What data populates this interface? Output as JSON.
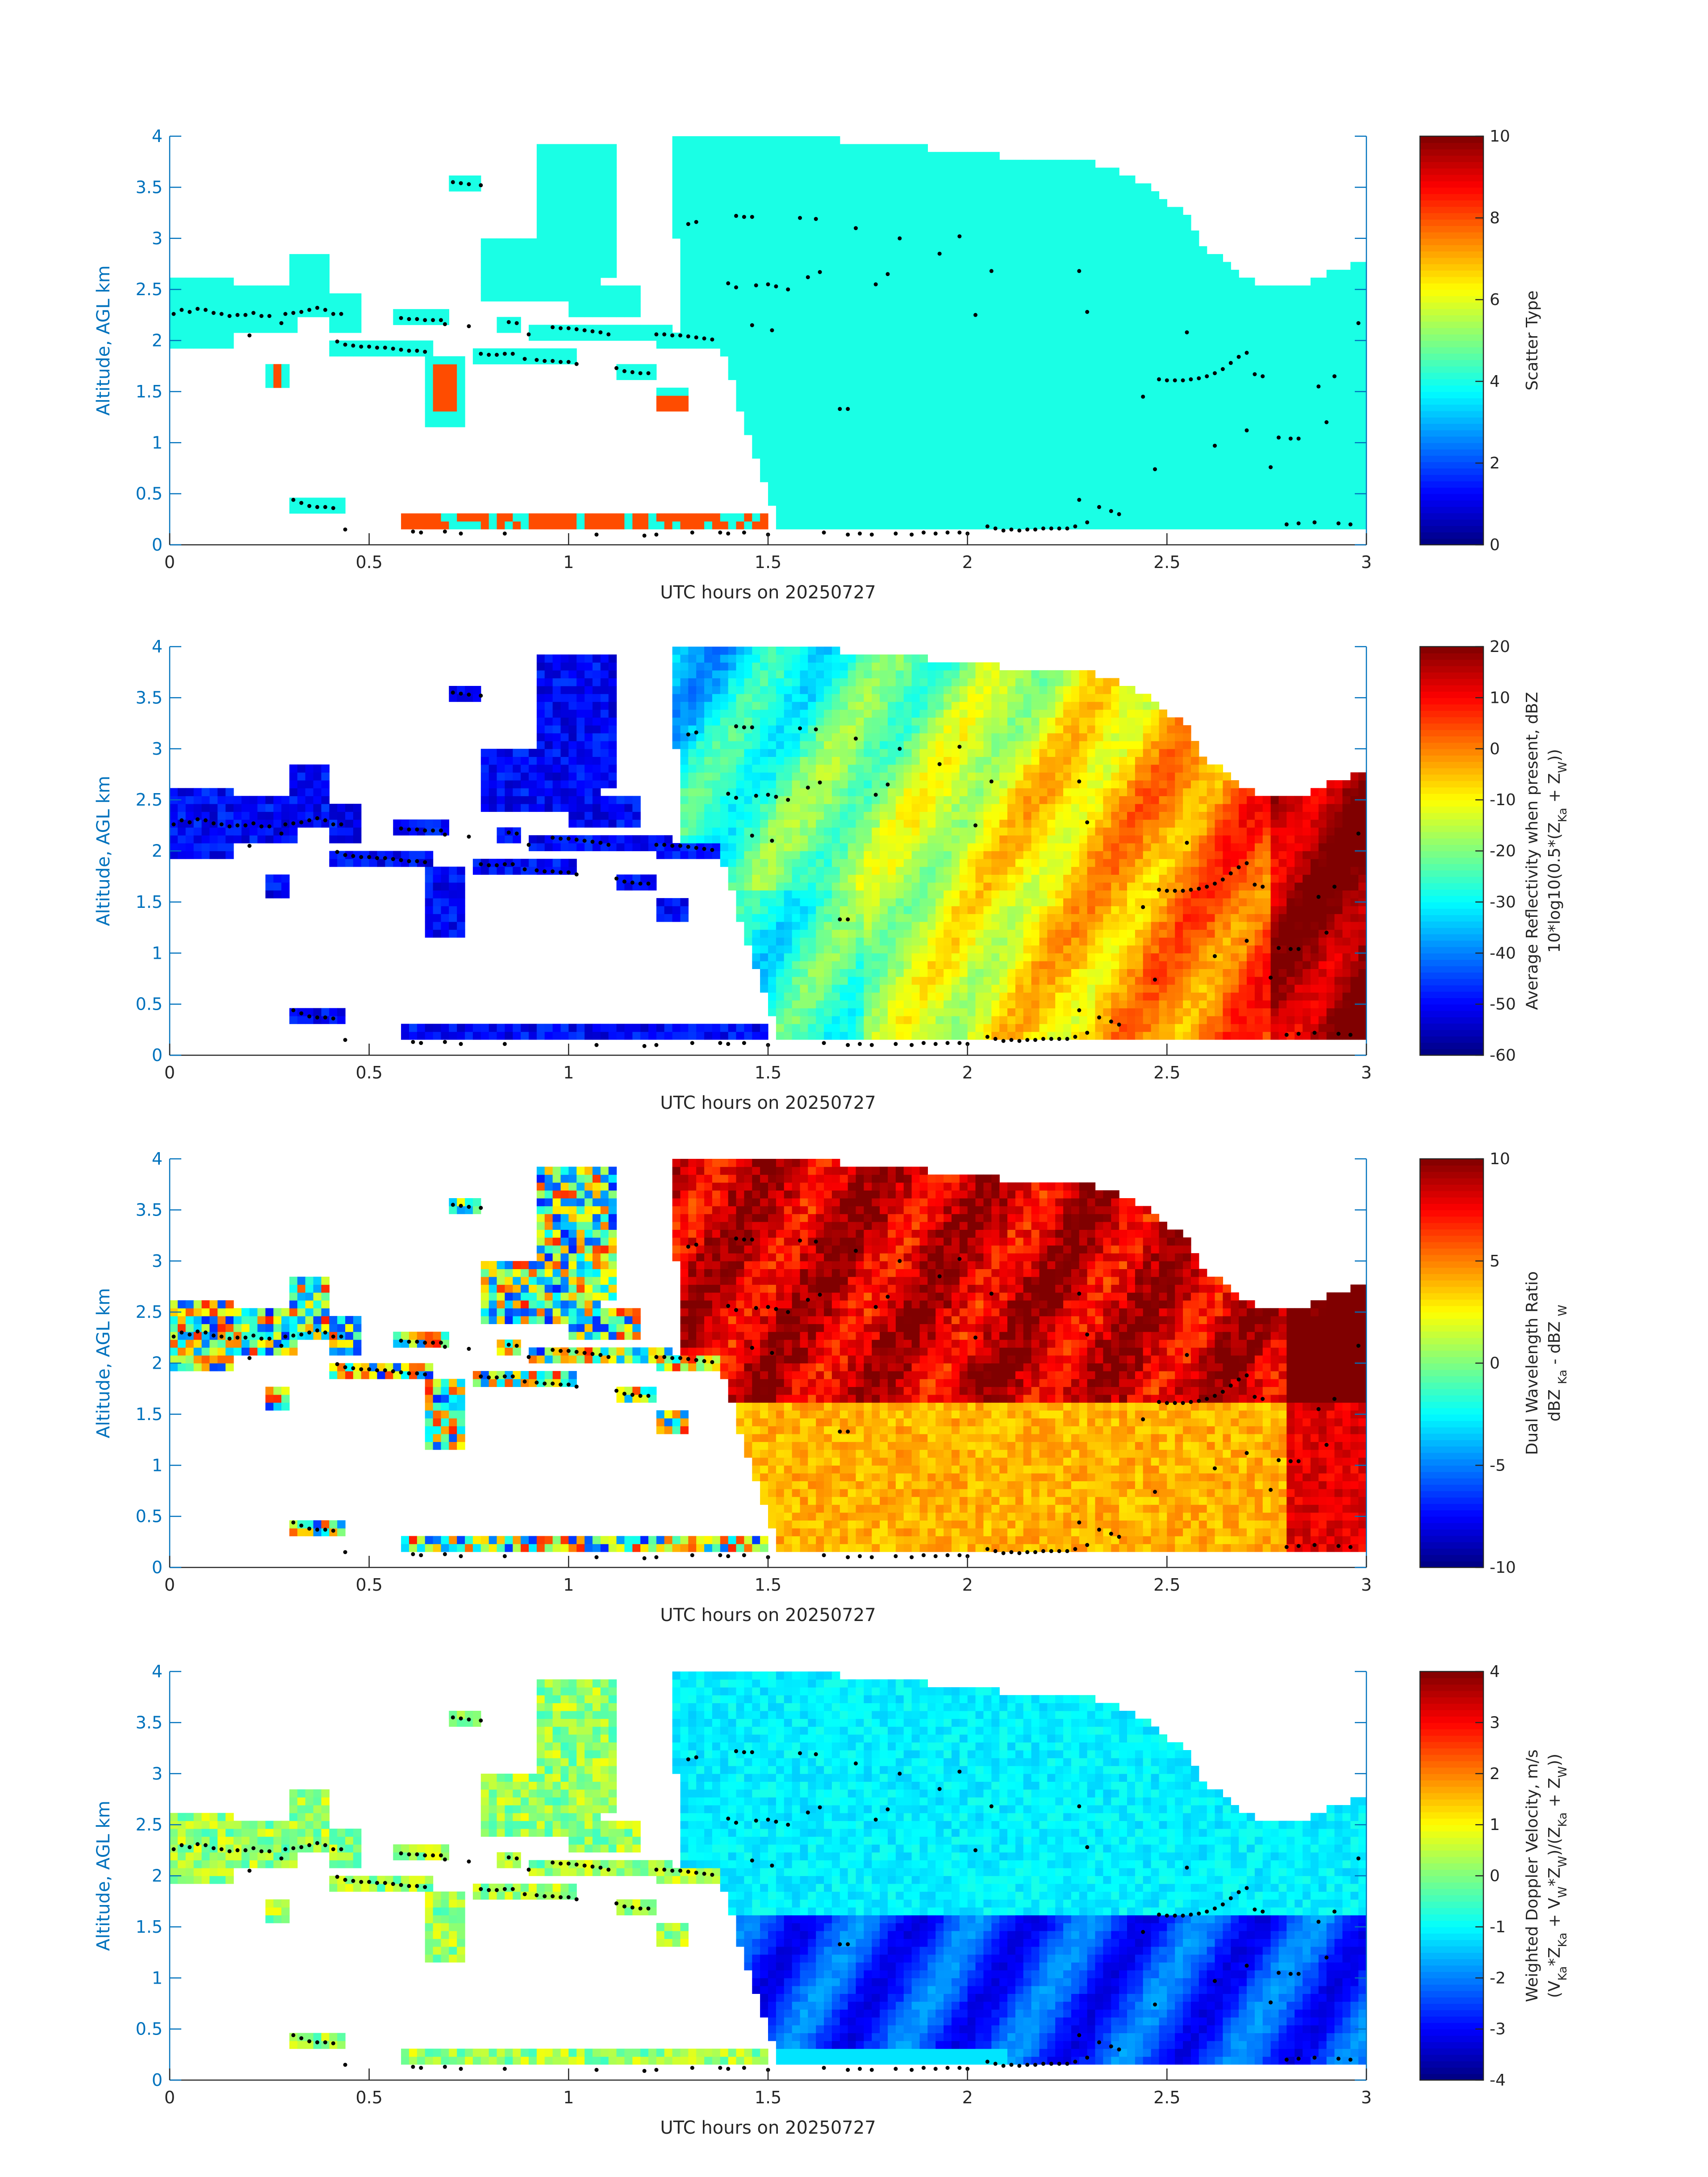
{
  "figure": {
    "background": "#ffffff",
    "frame_color": "#0072BD",
    "dot_color": "#000000"
  },
  "chart_data": [
    {
      "type": "heatmap",
      "id": "scatter-type",
      "xlabel": "UTC hours on 20250727",
      "ylabel": "Altitude, AGL km",
      "xlim": [
        0,
        3
      ],
      "ylim": [
        0,
        4
      ],
      "xticks": [
        "0",
        "0.5",
        "1",
        "1.5",
        "2",
        "2.5",
        "3"
      ],
      "yticks": [
        "0",
        "0.5",
        "1",
        "1.5",
        "2",
        "2.5",
        "3",
        "3.5",
        "4"
      ],
      "colorbar": {
        "label": "Scatter Type",
        "label_sub": "",
        "ticks": [
          "0",
          "2",
          "4",
          "6",
          "8",
          "10"
        ],
        "range": [
          0,
          10
        ]
      },
      "field": "scatter"
    },
    {
      "type": "heatmap",
      "id": "reflectivity",
      "xlabel": "UTC hours on 20250727",
      "ylabel": "Altitude, AGL km",
      "xlim": [
        0,
        3
      ],
      "ylim": [
        0,
        4
      ],
      "xticks": [
        "0",
        "0.5",
        "1",
        "1.5",
        "2",
        "2.5",
        "3"
      ],
      "yticks": [
        "0",
        "0.5",
        "1",
        "1.5",
        "2",
        "2.5",
        "3",
        "3.5",
        "4"
      ],
      "colorbar": {
        "label": "Average Reflectivity when present, dBZ",
        "label_sub": "10*log10(0.5*(Z",
        "label_parts": [
          "10*log10(0.5*(Z",
          "Ka",
          " + Z",
          "W",
          "))"
        ],
        "ticks": [
          "-60",
          "-50",
          "-40",
          "-30",
          "-20",
          "-10",
          "0",
          "10",
          "20"
        ],
        "range": [
          -60,
          20
        ]
      },
      "field": "reflectivity"
    },
    {
      "type": "heatmap",
      "id": "dual-wavelength-ratio",
      "xlabel": "UTC hours on 20250727",
      "ylabel": "Altitude, AGL km",
      "xlim": [
        0,
        3
      ],
      "ylim": [
        0,
        4
      ],
      "xticks": [
        "0",
        "0.5",
        "1",
        "1.5",
        "2",
        "2.5",
        "3"
      ],
      "yticks": [
        "0",
        "0.5",
        "1",
        "1.5",
        "2",
        "2.5",
        "3",
        "3.5",
        "4"
      ],
      "colorbar": {
        "label": "Dual Wavelength Ratio",
        "label_sub": "dBZ",
        "label_parts": [
          "dBZ ",
          "Ka",
          " - dBZ ",
          "W",
          ""
        ],
        "ticks": [
          "-10",
          "-5",
          "0",
          "5",
          "10"
        ],
        "range": [
          -10,
          10
        ]
      },
      "field": "dwr"
    },
    {
      "type": "heatmap",
      "id": "doppler-velocity",
      "xlabel": "UTC hours on 20250727",
      "ylabel": "Altitude, AGL km",
      "xlim": [
        0,
        3
      ],
      "ylim": [
        0,
        4
      ],
      "xticks": [
        "0",
        "0.5",
        "1",
        "1.5",
        "2",
        "2.5",
        "3"
      ],
      "yticks": [
        "0",
        "0.5",
        "1",
        "1.5",
        "2",
        "2.5",
        "3",
        "3.5",
        "4"
      ],
      "colorbar": {
        "label": "Weighted Doppler Velocity, m/s",
        "label_sub": "(V",
        "label_parts": [
          "(V",
          "Ka",
          "*Z",
          "Ka",
          " + V",
          "W",
          "*Z",
          "W",
          ")/(Z",
          "Ka",
          " + Z",
          "W",
          "))"
        ],
        "ticks": [
          "-4",
          "-3",
          "-2",
          "-1",
          "0",
          "1",
          "2",
          "3",
          "4"
        ],
        "range": [
          -4,
          4
        ]
      },
      "field": "velocity"
    }
  ],
  "dots": [
    [
      0.01,
      2.26
    ],
    [
      0.03,
      2.3
    ],
    [
      0.05,
      2.28
    ],
    [
      0.07,
      2.31
    ],
    [
      0.09,
      2.3
    ],
    [
      0.11,
      2.27
    ],
    [
      0.13,
      2.26
    ],
    [
      0.15,
      2.24
    ],
    [
      0.17,
      2.25
    ],
    [
      0.19,
      2.25
    ],
    [
      0.21,
      2.27
    ],
    [
      0.23,
      2.24
    ],
    [
      0.25,
      2.24
    ],
    [
      0.28,
      2.17
    ],
    [
      0.29,
      2.26
    ],
    [
      0.31,
      2.27
    ],
    [
      0.33,
      2.28
    ],
    [
      0.35,
      2.3
    ],
    [
      0.37,
      2.32
    ],
    [
      0.39,
      2.3
    ],
    [
      0.41,
      2.26
    ],
    [
      0.43,
      2.26
    ],
    [
      0.2,
      2.05
    ],
    [
      0.42,
      1.99
    ],
    [
      0.44,
      1.96
    ],
    [
      0.46,
      1.95
    ],
    [
      0.48,
      1.94
    ],
    [
      0.5,
      1.94
    ],
    [
      0.52,
      1.93
    ],
    [
      0.54,
      1.93
    ],
    [
      0.56,
      1.92
    ],
    [
      0.58,
      1.91
    ],
    [
      0.6,
      1.9
    ],
    [
      0.62,
      1.9
    ],
    [
      0.64,
      1.89
    ],
    [
      0.58,
      2.22
    ],
    [
      0.6,
      2.21
    ],
    [
      0.62,
      2.21
    ],
    [
      0.64,
      2.2
    ],
    [
      0.66,
      2.2
    ],
    [
      0.68,
      2.2
    ],
    [
      0.69,
      2.16
    ],
    [
      0.75,
      2.14
    ],
    [
      0.71,
      3.55
    ],
    [
      0.73,
      3.54
    ],
    [
      0.75,
      3.53
    ],
    [
      0.78,
      3.52
    ],
    [
      0.78,
      1.87
    ],
    [
      0.8,
      1.86
    ],
    [
      0.82,
      1.86
    ],
    [
      0.84,
      1.87
    ],
    [
      0.86,
      1.87
    ],
    [
      0.85,
      2.18
    ],
    [
      0.87,
      2.17
    ],
    [
      0.89,
      1.82
    ],
    [
      0.9,
      2.06
    ],
    [
      0.92,
      1.81
    ],
    [
      0.94,
      1.8
    ],
    [
      0.96,
      1.8
    ],
    [
      0.98,
      1.79
    ],
    [
      1.0,
      1.79
    ],
    [
      1.02,
      1.77
    ],
    [
      0.96,
      2.13
    ],
    [
      0.98,
      2.12
    ],
    [
      1.0,
      2.12
    ],
    [
      1.02,
      2.11
    ],
    [
      1.04,
      2.1
    ],
    [
      1.06,
      2.09
    ],
    [
      1.08,
      2.08
    ],
    [
      1.1,
      2.06
    ],
    [
      1.12,
      1.73
    ],
    [
      1.14,
      1.7
    ],
    [
      1.16,
      1.69
    ],
    [
      1.18,
      1.68
    ],
    [
      1.2,
      1.68
    ],
    [
      1.22,
      2.06
    ],
    [
      1.24,
      2.06
    ],
    [
      1.26,
      2.05
    ],
    [
      1.28,
      2.05
    ],
    [
      1.3,
      2.04
    ],
    [
      1.32,
      2.03
    ],
    [
      1.34,
      2.02
    ],
    [
      1.36,
      2.01
    ],
    [
      1.3,
      3.14
    ],
    [
      1.32,
      3.16
    ],
    [
      1.42,
      3.22
    ],
    [
      1.44,
      3.21
    ],
    [
      1.46,
      3.21
    ],
    [
      1.58,
      3.2
    ],
    [
      1.62,
      3.19
    ],
    [
      1.4,
      2.56
    ],
    [
      1.42,
      2.52
    ],
    [
      1.47,
      2.54
    ],
    [
      1.5,
      2.55
    ],
    [
      1.52,
      2.53
    ],
    [
      1.55,
      2.5
    ],
    [
      1.6,
      2.62
    ],
    [
      1.63,
      2.67
    ],
    [
      1.72,
      3.1
    ],
    [
      1.77,
      2.55
    ],
    [
      1.8,
      2.65
    ],
    [
      1.83,
      3.0
    ],
    [
      1.93,
      2.85
    ],
    [
      1.98,
      3.02
    ],
    [
      2.02,
      2.25
    ],
    [
      2.06,
      2.68
    ],
    [
      2.28,
      2.68
    ],
    [
      2.3,
      2.28
    ],
    [
      2.55,
      2.08
    ],
    [
      1.46,
      2.15
    ],
    [
      1.51,
      2.1
    ],
    [
      1.68,
      1.33
    ],
    [
      1.7,
      1.33
    ],
    [
      2.48,
      1.62
    ],
    [
      2.5,
      1.61
    ],
    [
      2.52,
      1.61
    ],
    [
      2.54,
      1.61
    ],
    [
      2.56,
      1.62
    ],
    [
      2.58,
      1.63
    ],
    [
      2.6,
      1.65
    ],
    [
      2.62,
      1.68
    ],
    [
      2.64,
      1.72
    ],
    [
      2.66,
      1.78
    ],
    [
      2.68,
      1.84
    ],
    [
      2.7,
      1.88
    ],
    [
      2.72,
      1.67
    ],
    [
      2.74,
      1.65
    ],
    [
      2.44,
      1.45
    ],
    [
      2.47,
      0.74
    ],
    [
      2.62,
      0.97
    ],
    [
      2.7,
      1.12
    ],
    [
      2.78,
      1.05
    ],
    [
      2.81,
      1.04
    ],
    [
      2.83,
      1.04
    ],
    [
      2.88,
      1.55
    ],
    [
      2.9,
      1.2
    ],
    [
      2.92,
      1.65
    ],
    [
      2.98,
      2.17
    ],
    [
      2.76,
      0.76
    ],
    [
      2.28,
      0.44
    ],
    [
      2.33,
      0.37
    ],
    [
      2.36,
      0.33
    ],
    [
      2.38,
      0.3
    ],
    [
      0.61,
      0.13
    ],
    [
      0.63,
      0.12
    ],
    [
      0.69,
      0.13
    ],
    [
      0.73,
      0.11
    ],
    [
      0.84,
      0.11
    ],
    [
      1.07,
      0.1
    ],
    [
      1.19,
      0.09
    ],
    [
      1.22,
      0.1
    ],
    [
      1.31,
      0.12
    ],
    [
      1.38,
      0.12
    ],
    [
      1.4,
      0.11
    ],
    [
      1.44,
      0.12
    ],
    [
      1.5,
      0.1
    ],
    [
      1.64,
      0.12
    ],
    [
      1.7,
      0.1
    ],
    [
      1.73,
      0.11
    ],
    [
      1.76,
      0.1
    ],
    [
      1.82,
      0.11
    ],
    [
      1.86,
      0.1
    ],
    [
      1.89,
      0.12
    ],
    [
      1.92,
      0.11
    ],
    [
      1.95,
      0.12
    ],
    [
      1.98,
      0.12
    ],
    [
      2.0,
      0.11
    ],
    [
      2.05,
      0.18
    ],
    [
      2.07,
      0.16
    ],
    [
      2.09,
      0.14
    ],
    [
      2.11,
      0.15
    ],
    [
      2.13,
      0.14
    ],
    [
      2.15,
      0.15
    ],
    [
      2.17,
      0.15
    ],
    [
      2.19,
      0.16
    ],
    [
      2.21,
      0.16
    ],
    [
      2.23,
      0.16
    ],
    [
      2.25,
      0.16
    ],
    [
      2.27,
      0.18
    ],
    [
      2.3,
      0.22
    ],
    [
      2.8,
      0.2
    ],
    [
      2.83,
      0.21
    ],
    [
      2.87,
      0.22
    ],
    [
      2.93,
      0.21
    ],
    [
      2.96,
      0.2
    ],
    [
      0.31,
      0.44
    ],
    [
      0.33,
      0.41
    ],
    [
      0.35,
      0.38
    ],
    [
      0.37,
      0.37
    ],
    [
      0.39,
      0.37
    ],
    [
      0.41,
      0.36
    ],
    [
      0.44,
      0.15
    ]
  ]
}
